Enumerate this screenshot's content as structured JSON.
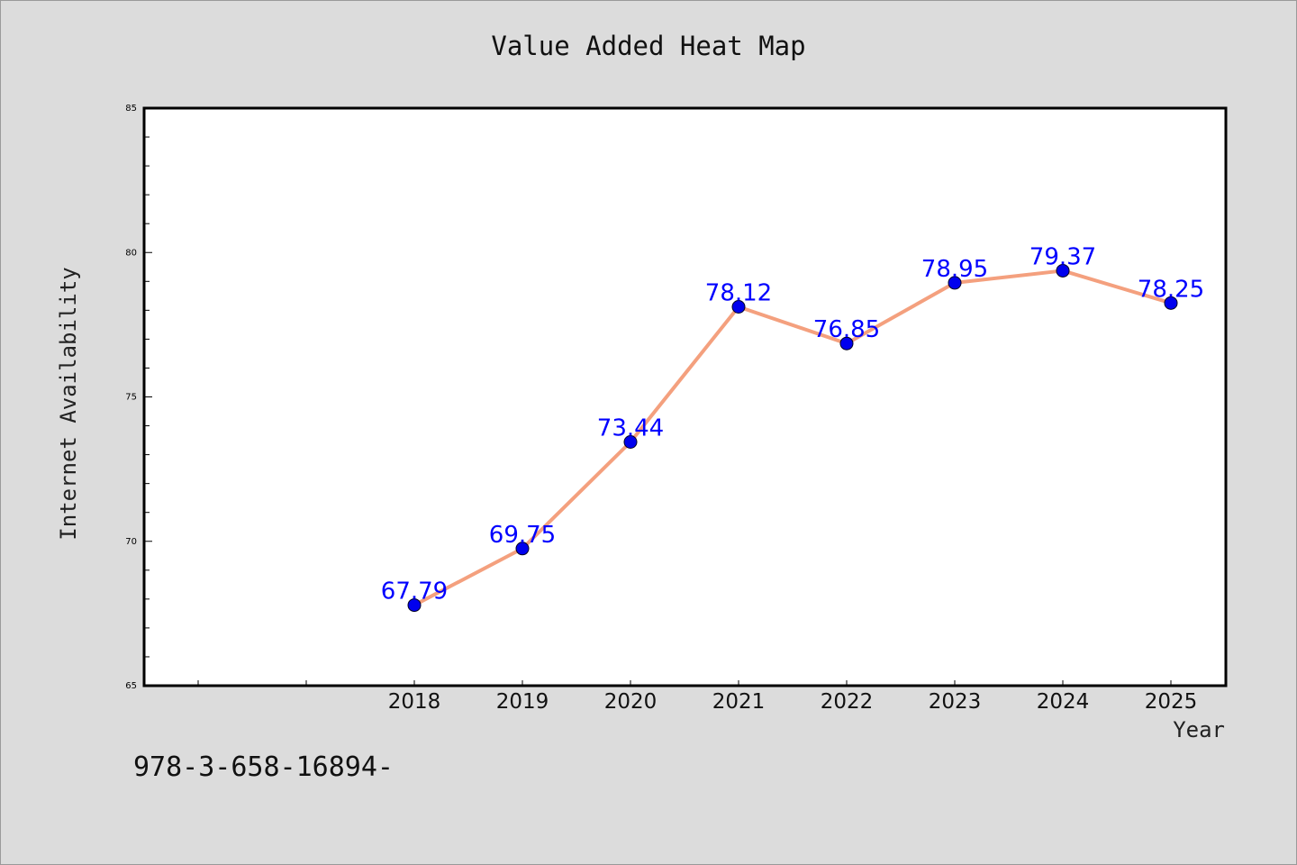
{
  "chart_data": {
    "type": "line",
    "title": "Value Added Heat Map",
    "xlabel": "Year",
    "ylabel": "Internet Availability",
    "categories": [
      "2018",
      "2019",
      "2020",
      "2021",
      "2022",
      "2023",
      "2024",
      "2025"
    ],
    "series": [
      {
        "values": [
          67.79,
          69.75,
          73.44,
          78.12,
          76.85,
          78.95,
          79.37,
          78.25
        ],
        "labels": [
          "67.79",
          "69.75",
          "73.44",
          "78.12",
          "76.85",
          "78.95",
          "79.37",
          "78.25"
        ]
      }
    ],
    "ylim": [
      65,
      85
    ],
    "yticks": [
      "65",
      "70",
      "75",
      "80",
      "85"
    ],
    "grid": false,
    "line_color": "#f4a07e",
    "marker_color": "#0000ee",
    "label_color": "#0000ff"
  },
  "footnote": "978-3-658-16894-"
}
